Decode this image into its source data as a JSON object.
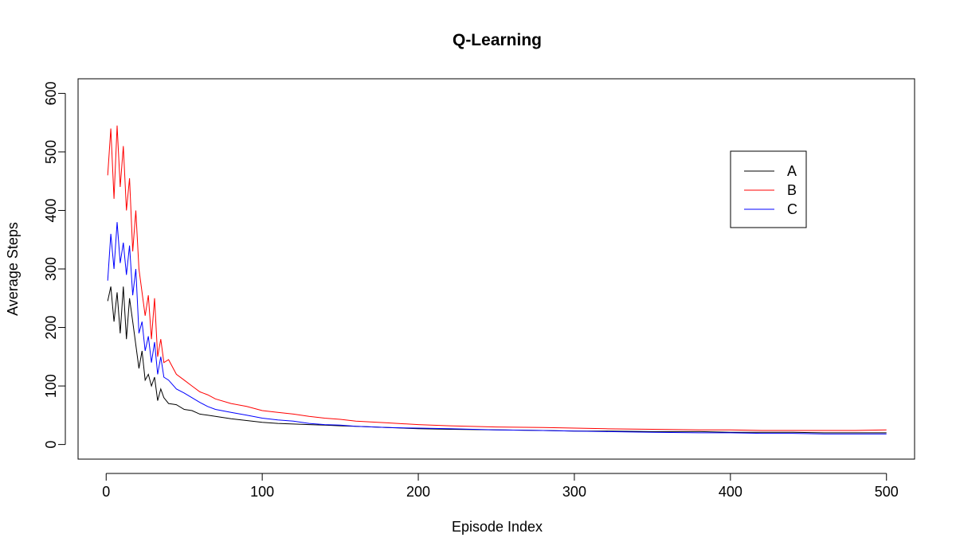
{
  "chart_data": {
    "type": "line",
    "title": "Q-Learning",
    "xlabel": "Episode Index",
    "ylabel": "Average Steps",
    "xlim": [
      -18,
      518
    ],
    "ylim": [
      -25,
      625
    ],
    "xticks": [
      0,
      100,
      200,
      300,
      400,
      500
    ],
    "yticks": [
      0,
      100,
      200,
      300,
      400,
      500,
      600
    ],
    "legend_position": "top-right",
    "grid": false,
    "series": [
      {
        "name": "A",
        "color": "#000000",
        "x": [
          1,
          3,
          5,
          7,
          9,
          11,
          13,
          15,
          17,
          19,
          21,
          23,
          25,
          27,
          29,
          31,
          33,
          35,
          37,
          40,
          45,
          50,
          55,
          60,
          65,
          70,
          80,
          90,
          100,
          110,
          120,
          130,
          140,
          150,
          160,
          180,
          200,
          220,
          250,
          280,
          300,
          320,
          350,
          380,
          400,
          420,
          440,
          460,
          480,
          500
        ],
        "values": [
          245,
          270,
          210,
          260,
          190,
          270,
          180,
          250,
          210,
          170,
          130,
          160,
          110,
          120,
          100,
          115,
          75,
          95,
          80,
          70,
          68,
          60,
          58,
          52,
          50,
          48,
          44,
          41,
          38,
          36,
          35,
          34,
          33,
          32,
          31,
          29,
          27,
          26,
          25,
          24,
          23,
          23,
          22,
          22,
          21,
          21,
          21,
          20,
          20,
          20
        ]
      },
      {
        "name": "B",
        "color": "#ff0000",
        "x": [
          1,
          3,
          5,
          7,
          9,
          11,
          13,
          15,
          17,
          19,
          21,
          23,
          25,
          27,
          29,
          31,
          33,
          35,
          37,
          40,
          45,
          50,
          55,
          60,
          65,
          70,
          80,
          90,
          100,
          110,
          120,
          130,
          140,
          150,
          160,
          180,
          200,
          220,
          250,
          280,
          300,
          320,
          350,
          380,
          400,
          420,
          440,
          460,
          480,
          500
        ],
        "values": [
          460,
          540,
          420,
          545,
          440,
          510,
          400,
          455,
          330,
          400,
          300,
          260,
          220,
          255,
          180,
          250,
          150,
          180,
          140,
          145,
          120,
          110,
          100,
          90,
          85,
          78,
          70,
          65,
          58,
          55,
          52,
          48,
          45,
          43,
          40,
          37,
          34,
          32,
          30,
          29,
          28,
          27,
          26,
          25,
          25,
          24,
          24,
          24,
          24,
          25
        ]
      },
      {
        "name": "C",
        "color": "#0000ff",
        "x": [
          1,
          3,
          5,
          7,
          9,
          11,
          13,
          15,
          17,
          19,
          21,
          23,
          25,
          27,
          29,
          31,
          33,
          35,
          37,
          40,
          45,
          50,
          55,
          60,
          65,
          70,
          80,
          90,
          100,
          110,
          120,
          130,
          140,
          150,
          160,
          180,
          200,
          220,
          250,
          280,
          300,
          320,
          350,
          380,
          400,
          420,
          440,
          460,
          480,
          500
        ],
        "values": [
          280,
          360,
          300,
          380,
          310,
          345,
          290,
          340,
          255,
          300,
          190,
          210,
          160,
          185,
          140,
          175,
          120,
          150,
          115,
          110,
          95,
          88,
          80,
          72,
          65,
          60,
          55,
          50,
          45,
          42,
          40,
          36,
          34,
          33,
          31,
          29,
          28,
          27,
          25,
          24,
          23,
          22,
          21,
          20,
          20,
          19,
          19,
          18,
          18,
          18
        ]
      }
    ]
  }
}
